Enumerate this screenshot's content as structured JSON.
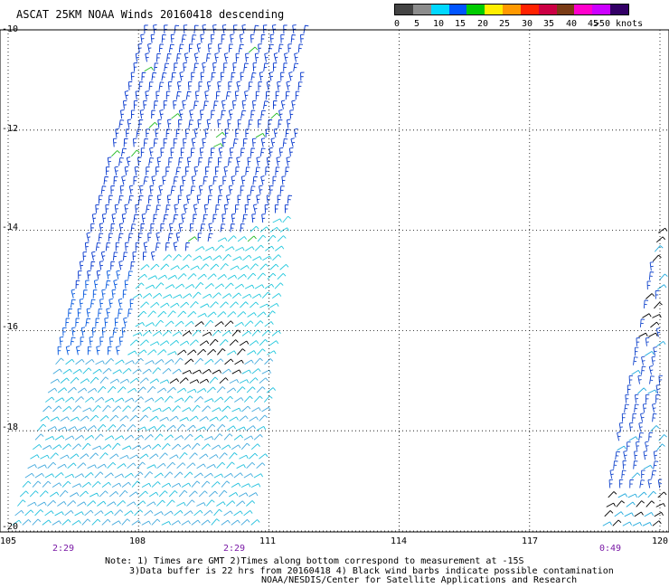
{
  "title": "ASCAT 25KM NOAA Winds 20160418 descending",
  "legend": {
    "colors": [
      "#444444",
      "#8c8c8c",
      "#00d8ff",
      "#0055ff",
      "#00cc00",
      "#ffee00",
      "#ff9900",
      "#ff2200",
      "#cc0044",
      "#7a3b16",
      "#ff00cc",
      "#cc00ff",
      "#330066"
    ],
    "labels": [
      "0",
      "5",
      "10",
      "15",
      "20",
      "25",
      "30",
      "35",
      "40",
      "45",
      ">50 knots"
    ]
  },
  "axes": {
    "y_ticks": [
      "-10",
      "-12",
      "-14",
      "-16",
      "-18",
      "-20"
    ],
    "x_ticks": [
      "105",
      "108",
      "111",
      "114",
      "117",
      "120"
    ]
  },
  "times": [
    "2:29",
    "2:29",
    "0:49"
  ],
  "notes": [
    "Note: 1) Times are GMT 2)Times along bottom correspond to measurement at -15S",
    "3)Data buffer is 22 hrs from 20160418 4) Black wind barbs indicate possible contamination",
    "NOAA/NESDIS/Center for Satellite Applications and Research"
  ],
  "map": {
    "lon_range": [
      105,
      120
    ],
    "lat_range": [
      -10,
      -20
    ],
    "grid": true,
    "swaths": [
      {
        "name": "west-swath",
        "lat_top": -10,
        "lat_bottom": -20,
        "lon_left_top": 108.1,
        "lon_right_top": 111.9,
        "lon_left_bottom": 105.0,
        "lon_right_bottom": 110.6,
        "time": "2:29"
      },
      {
        "name": "east-swath",
        "lat_top": -13.6,
        "lat_bottom": -20,
        "lon_left_top": 120.0,
        "lon_right_top": 120.0,
        "lon_left_bottom": 118.6,
        "lon_right_bottom": 120.0,
        "time": "0:49"
      }
    ]
  }
}
